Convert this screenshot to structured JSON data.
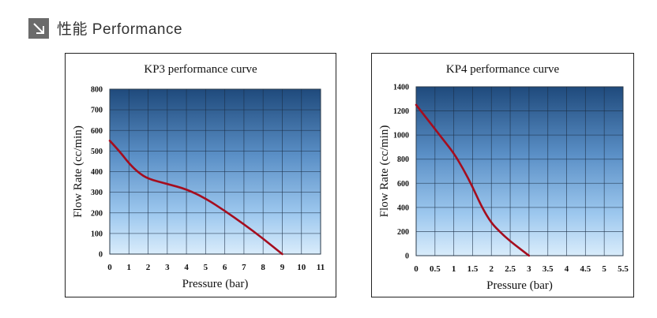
{
  "header": {
    "title": "性能 Performance",
    "icon": "arrow-down-right-icon"
  },
  "chart_data": [
    {
      "type": "line",
      "title": "KP3 performance curve",
      "xlabel": "Pressure (bar)",
      "ylabel": "Flow Rate (cc/min)",
      "xlim": [
        0,
        11
      ],
      "ylim": [
        0,
        800
      ],
      "xticks": [
        "0",
        "1",
        "2",
        "3",
        "4",
        "5",
        "6",
        "7",
        "8",
        "9",
        "10",
        "11"
      ],
      "yticks": [
        "0",
        "100",
        "200",
        "300",
        "400",
        "500",
        "600",
        "700",
        "800"
      ],
      "grid": true,
      "series": [
        {
          "color": "#a50d1e",
          "x": [
            0,
            0.5,
            1,
            1.5,
            2,
            3,
            4,
            5,
            6,
            7,
            8,
            9
          ],
          "y": [
            550,
            500,
            440,
            395,
            365,
            340,
            315,
            270,
            210,
            145,
            75,
            0
          ]
        }
      ]
    },
    {
      "type": "line",
      "title": "KP4 performance curve",
      "xlabel": "Pressure (bar)",
      "ylabel": "Flow Rate (cc/min)",
      "xlim": [
        0,
        5.5
      ],
      "ylim": [
        0,
        1400
      ],
      "xticks": [
        "0",
        "0.5",
        "1",
        "1.5",
        "2",
        "2.5",
        "3",
        "3.5",
        "4",
        "4.5",
        "5",
        "5.5"
      ],
      "yticks": [
        "0",
        "200",
        "400",
        "600",
        "800",
        "1000",
        "1200",
        "1400"
      ],
      "grid": true,
      "series": [
        {
          "color": "#a50d1e",
          "x": [
            0,
            0.25,
            0.5,
            0.75,
            1,
            1.25,
            1.5,
            1.75,
            2,
            2.25,
            2.5,
            2.75,
            3
          ],
          "y": [
            1250,
            1150,
            1050,
            950,
            850,
            720,
            570,
            400,
            270,
            190,
            120,
            60,
            0
          ]
        }
      ]
    }
  ]
}
